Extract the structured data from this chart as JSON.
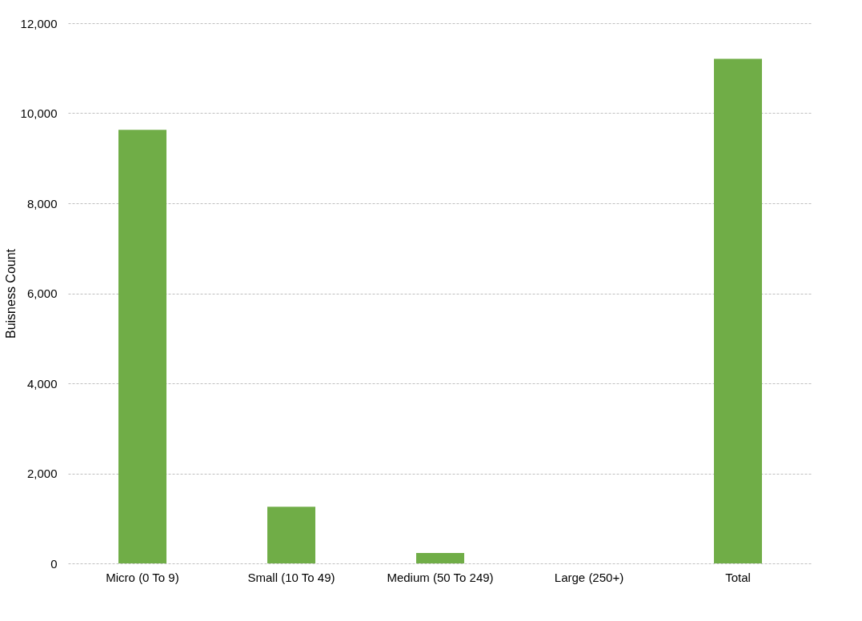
{
  "chart_data": {
    "type": "bar",
    "ylabel": "Buisness Count",
    "categories": [
      "Micro (0 To 9)",
      "Small (10 To 49)",
      "Medium (50 To 249)",
      "Large (250+)",
      "Total"
    ],
    "values": [
      9630,
      1260,
      230,
      0,
      11210
    ],
    "color": "#70ad47",
    "ylim": [
      0,
      12000
    ],
    "yticks": [
      0,
      {
        "value": 2000,
        "label": "2,000"
      },
      {
        "value": 4000,
        "label": "4,000"
      },
      {
        "value": 6000,
        "label": "6,000"
      },
      {
        "value": 8000,
        "label": "8,000"
      },
      {
        "value": 10000,
        "label": "10,000"
      },
      {
        "value": 12000,
        "label": "12,000"
      }
    ],
    "grid": "y"
  }
}
